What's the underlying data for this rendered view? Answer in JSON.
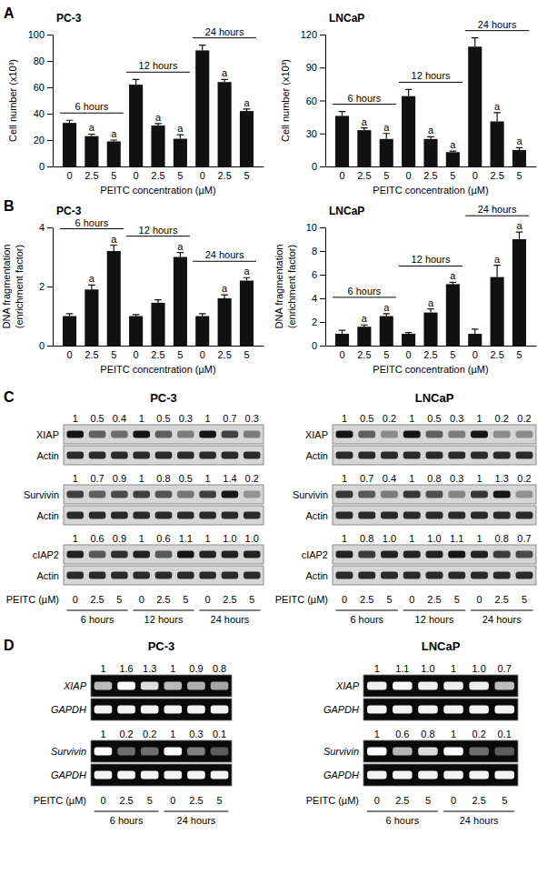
{
  "chart_data": [
    {
      "type": "bar",
      "panel": "A",
      "title": "PC-3",
      "y_label": [
        "Cell number (x10³)"
      ],
      "x_label": "PEITC concentration (µM)",
      "categories": [
        "0",
        "2.5",
        "5",
        "0",
        "2.5",
        "5",
        "0",
        "2.5",
        "5"
      ],
      "groups": [
        "6 hours",
        "12 hours",
        "24 hours"
      ],
      "values": [
        33,
        23,
        19,
        62,
        31,
        21,
        88,
        64,
        42
      ],
      "errors": [
        2,
        1.5,
        1,
        4,
        1.5,
        3,
        4,
        2,
        1.5
      ],
      "annotations": [
        null,
        "a",
        "a",
        null,
        "a",
        "a",
        null,
        "a",
        "a"
      ],
      "color": "#111111",
      "ylim": [
        0,
        100
      ],
      "yticks": [
        0,
        20,
        40,
        60,
        80,
        100
      ]
    },
    {
      "type": "bar",
      "title": "LNCaP",
      "y_label": [
        "Cell number (x10³)"
      ],
      "x_label": "PEITC concentration (µM)",
      "categories": [
        "0",
        "2.5",
        "5",
        "0",
        "2.5",
        "5",
        "0",
        "2.5",
        "5"
      ],
      "groups": [
        "6 hours",
        "12 hours",
        "24 hours"
      ],
      "values": [
        46,
        33,
        25,
        64,
        25,
        13,
        109,
        41,
        15
      ],
      "errors": [
        4,
        2,
        5,
        6,
        2,
        1,
        8,
        8,
        2
      ],
      "annotations": [
        null,
        "a",
        "a",
        null,
        "a",
        "a",
        null,
        "a",
        "a"
      ],
      "color": "#111111",
      "ylim": [
        0,
        120
      ],
      "yticks": [
        0,
        30,
        60,
        90,
        120
      ]
    },
    {
      "type": "bar",
      "panel": "B",
      "title": "PC-3",
      "y_label": [
        "DNA fragmentation",
        "(enrichment factor)"
      ],
      "x_label": "PEITC concentration (µM)",
      "categories": [
        "0",
        "2.5",
        "5",
        "0",
        "2.5",
        "5",
        "0",
        "2.5",
        "5"
      ],
      "groups": [
        "6 hours",
        "12 hours",
        "24 hours"
      ],
      "values": [
        1,
        1.9,
        3.2,
        1,
        1.45,
        3,
        1,
        1.6,
        2.2
      ],
      "errors": [
        0.08,
        0.15,
        0.2,
        0.05,
        0.1,
        0.15,
        0.08,
        0.12,
        0.1
      ],
      "annotations": [
        null,
        "a",
        "a",
        null,
        null,
        "a",
        null,
        "a",
        "a"
      ],
      "color": "#111111",
      "ylim": [
        0,
        4
      ],
      "yticks": [
        0,
        2,
        4
      ]
    },
    {
      "type": "bar",
      "title": "LNCaP",
      "y_label": [
        "DNA fragmentation",
        "(enrichment factor)"
      ],
      "x_label": "PEITC concentration (µM)",
      "categories": [
        "0",
        "2.5",
        "5",
        "0",
        "2.5",
        "5",
        "0",
        "2.5",
        "5"
      ],
      "groups": [
        "6 hours",
        "12 hours",
        "24 hours"
      ],
      "values": [
        1,
        1.6,
        2.5,
        1,
        2.8,
        5.2,
        1,
        5.8,
        9
      ],
      "errors": [
        0.3,
        0.15,
        0.2,
        0.1,
        0.3,
        0.15,
        0.4,
        1,
        0.6
      ],
      "annotations": [
        null,
        "a",
        "a",
        null,
        "a",
        "a",
        null,
        "a",
        "a"
      ],
      "color": "#111111",
      "ylim": [
        0,
        10
      ],
      "yticks": [
        0,
        2,
        4,
        6,
        8,
        10
      ]
    },
    {
      "type": "blot",
      "panel": "C",
      "title": "PC-3",
      "x_label": "PEITC (µM)",
      "categories": [
        "0",
        "2.5",
        "5",
        "0",
        "2.5",
        "5",
        "0",
        "2.5",
        "5"
      ],
      "groups": [
        "6 hours",
        "12 hours",
        "24 hours"
      ],
      "rows": [
        {
          "label": "XIAP",
          "values": [
            1,
            0.5,
            0.4,
            1,
            0.5,
            0.3,
            1,
            0.7,
            0.3
          ]
        },
        {
          "label": "Actin"
        },
        {
          "label": "Survivin",
          "values": [
            1,
            0.7,
            0.9,
            1,
            0.8,
            0.5,
            1,
            1.4,
            0.2
          ]
        },
        {
          "label": "Actin"
        },
        {
          "label": "cIAP2",
          "values": [
            1,
            0.6,
            0.9,
            1,
            0.6,
            1.1,
            1,
            1,
            1
          ],
          "value_labels": [
            "1",
            "0.6",
            "0.9",
            "1",
            "0.6",
            "1.1",
            "1",
            "1.0",
            "1.0"
          ]
        },
        {
          "label": "Actin"
        }
      ]
    },
    {
      "type": "blot",
      "title": "LNCaP",
      "x_label": "PEITC (µM)",
      "categories": [
        "0",
        "2.5",
        "5",
        "0",
        "2.5",
        "5",
        "0",
        "2.5",
        "5"
      ],
      "groups": [
        "6 hours",
        "12 hours",
        "24 hours"
      ],
      "rows": [
        {
          "label": "XIAP",
          "values": [
            1,
            0.5,
            0.2,
            1,
            0.5,
            0.3,
            1,
            0.2,
            0.2
          ]
        },
        {
          "label": "Actin"
        },
        {
          "label": "Survivin",
          "values": [
            1,
            0.7,
            0.4,
            1,
            0.8,
            0.3,
            1,
            1.3,
            0.2
          ]
        },
        {
          "label": "Actin"
        },
        {
          "label": "cIAP2",
          "values": [
            1,
            0.8,
            1,
            1,
            1,
            1.1,
            1,
            0.8,
            0.7
          ],
          "value_labels": [
            "1",
            "0.8",
            "1.0",
            "1",
            "1.0",
            "1.1",
            "1",
            "0.8",
            "0.7"
          ]
        },
        {
          "label": "Actin"
        }
      ]
    },
    {
      "type": "gel",
      "panel": "D",
      "title": "PC-3",
      "x_label": "PEITC (µM)",
      "categories": [
        "0",
        "2.5",
        "5",
        "0",
        "2.5",
        "5"
      ],
      "groups": [
        "6 hours",
        "24 hours"
      ],
      "rows": [
        {
          "label": "XIAP",
          "values": [
            1,
            1.6,
            1.3,
            1,
            0.9,
            0.8
          ]
        },
        {
          "label": "GAPDH"
        },
        {
          "label": "Survivin",
          "values": [
            1,
            0.2,
            0.2,
            1,
            0.3,
            0.1
          ]
        },
        {
          "label": "GAPDH"
        }
      ]
    },
    {
      "type": "gel",
      "title": "LNCaP",
      "x_label": "PEITC (µM)",
      "categories": [
        "0",
        "2.5",
        "5",
        "0",
        "2.5",
        "5"
      ],
      "groups": [
        "6 hours",
        "24 hours"
      ],
      "rows": [
        {
          "label": "XIAP",
          "values": [
            1,
            1.1,
            1,
            1,
            1,
            0.7
          ],
          "value_labels": [
            "1",
            "1.1",
            "1.0",
            "1",
            "1.0",
            "0.7"
          ]
        },
        {
          "label": "GAPDH"
        },
        {
          "label": "Survivin",
          "values": [
            1,
            0.6,
            0.8,
            1,
            0.2,
            0.1
          ]
        },
        {
          "label": "GAPDH"
        }
      ]
    }
  ]
}
